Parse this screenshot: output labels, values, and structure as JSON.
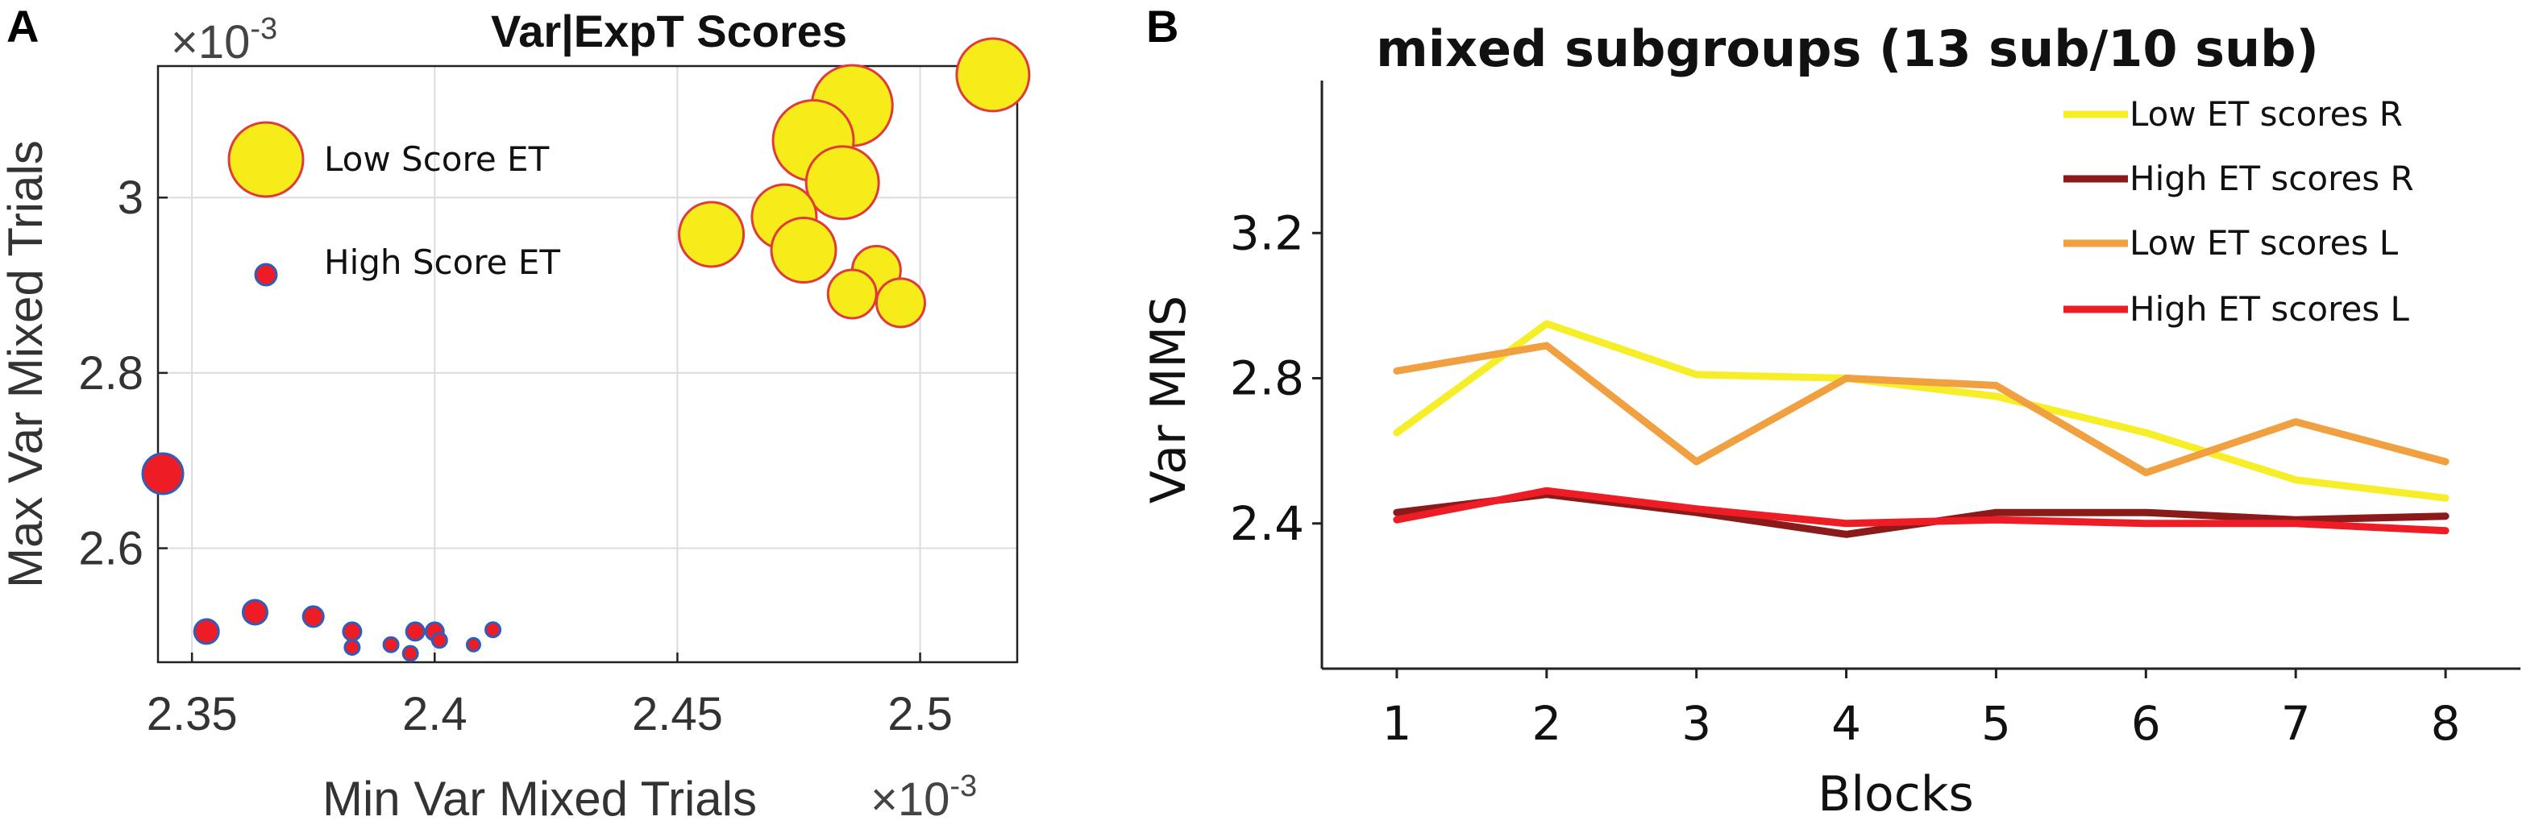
{
  "panel_a": {
    "panel_label": "A",
    "exponent_top": "×10",
    "exponent_top_sup": "-3",
    "exponent_bottom": "×10",
    "exponent_bottom_sup": "-3",
    "legend": {
      "low_label": "Low Score ET",
      "high_label": "High Score ET"
    },
    "colors": {
      "low_fill": "#f5ec1a",
      "low_edge": "#e03a3a",
      "high_fill": "#ee1c24",
      "high_edge": "#2f5db8"
    }
  },
  "panel_b": {
    "panel_label": "B",
    "colors": {
      "low_r": "#f7ee2a",
      "high_r": "#8b1a1a",
      "low_l": "#f0a040",
      "high_l": "#ee1c24"
    }
  },
  "chart_data": [
    {
      "type": "scatter",
      "title": "Var|ExpT Scores",
      "xlabel": "Min Var Mixed Trials",
      "ylabel": "Max Var Mixed Trials",
      "xlim": [
        2.343,
        2.52
      ],
      "ylim": [
        2.47,
        3.15
      ],
      "xticks": [
        2.35,
        2.4,
        2.45,
        2.5
      ],
      "xtick_labels": [
        "2.35",
        "2.4",
        "2.45",
        "2.5"
      ],
      "yticks": [
        2.6,
        2.8,
        3.0
      ],
      "ytick_labels": [
        "2.6",
        "2.8",
        "3"
      ],
      "grid": true,
      "series": [
        {
          "name": "Low Score ET",
          "points": [
            {
              "x": 2.515,
              "y": 3.14,
              "size": 9
            },
            {
              "x": 2.486,
              "y": 3.105,
              "size": 10
            },
            {
              "x": 2.478,
              "y": 3.065,
              "size": 10
            },
            {
              "x": 2.484,
              "y": 3.017,
              "size": 9
            },
            {
              "x": 2.472,
              "y": 2.978,
              "size": 8
            },
            {
              "x": 2.457,
              "y": 2.958,
              "size": 8
            },
            {
              "x": 2.476,
              "y": 2.94,
              "size": 8
            },
            {
              "x": 2.491,
              "y": 2.917,
              "size": 6
            },
            {
              "x": 2.486,
              "y": 2.89,
              "size": 6
            },
            {
              "x": 2.496,
              "y": 2.88,
              "size": 6
            }
          ]
        },
        {
          "name": "High Score ET",
          "points": [
            {
              "x": 2.344,
              "y": 2.685,
              "size": 5
            },
            {
              "x": 2.363,
              "y": 2.527,
              "size": 3
            },
            {
              "x": 2.353,
              "y": 2.505,
              "size": 3
            },
            {
              "x": 2.375,
              "y": 2.522,
              "size": 2.5
            },
            {
              "x": 2.383,
              "y": 2.505,
              "size": 2.2
            },
            {
              "x": 2.383,
              "y": 2.487,
              "size": 1.8
            },
            {
              "x": 2.391,
              "y": 2.49,
              "size": 1.8
            },
            {
              "x": 2.395,
              "y": 2.48,
              "size": 1.8
            },
            {
              "x": 2.396,
              "y": 2.505,
              "size": 2.2
            },
            {
              "x": 2.4,
              "y": 2.505,
              "size": 2.2
            },
            {
              "x": 2.401,
              "y": 2.495,
              "size": 1.8
            },
            {
              "x": 2.408,
              "y": 2.49,
              "size": 1.6
            },
            {
              "x": 2.412,
              "y": 2.507,
              "size": 1.8
            }
          ]
        }
      ]
    },
    {
      "type": "line",
      "title": "mixed subgroups (13 sub/10 sub)",
      "xlabel": "Blocks",
      "ylabel": "Var MMS",
      "x": [
        1,
        2,
        3,
        4,
        5,
        6,
        7,
        8
      ],
      "xtick_labels": [
        "1",
        "2",
        "3",
        "4",
        "5",
        "6",
        "7",
        "8"
      ],
      "yticks": [
        2.4,
        2.8,
        3.2
      ],
      "ytick_labels": [
        "2.4",
        "2.8",
        "3.2"
      ],
      "ylim": [
        2.0,
        3.62
      ],
      "xlim": [
        0.5,
        8.5
      ],
      "legend_position": "top-right",
      "series": [
        {
          "name": "Low ET scores R",
          "values": [
            2.65,
            2.95,
            2.81,
            2.8,
            2.75,
            2.65,
            2.52,
            2.47
          ]
        },
        {
          "name": "High ET scores R",
          "values": [
            2.43,
            2.48,
            2.43,
            2.37,
            2.43,
            2.43,
            2.41,
            2.42
          ]
        },
        {
          "name": "Low ET scores L",
          "values": [
            2.82,
            2.89,
            2.57,
            2.8,
            2.78,
            2.54,
            2.68,
            2.57
          ]
        },
        {
          "name": "High ET scores L",
          "values": [
            2.41,
            2.49,
            2.44,
            2.4,
            2.41,
            2.4,
            2.4,
            2.38
          ]
        }
      ]
    }
  ]
}
